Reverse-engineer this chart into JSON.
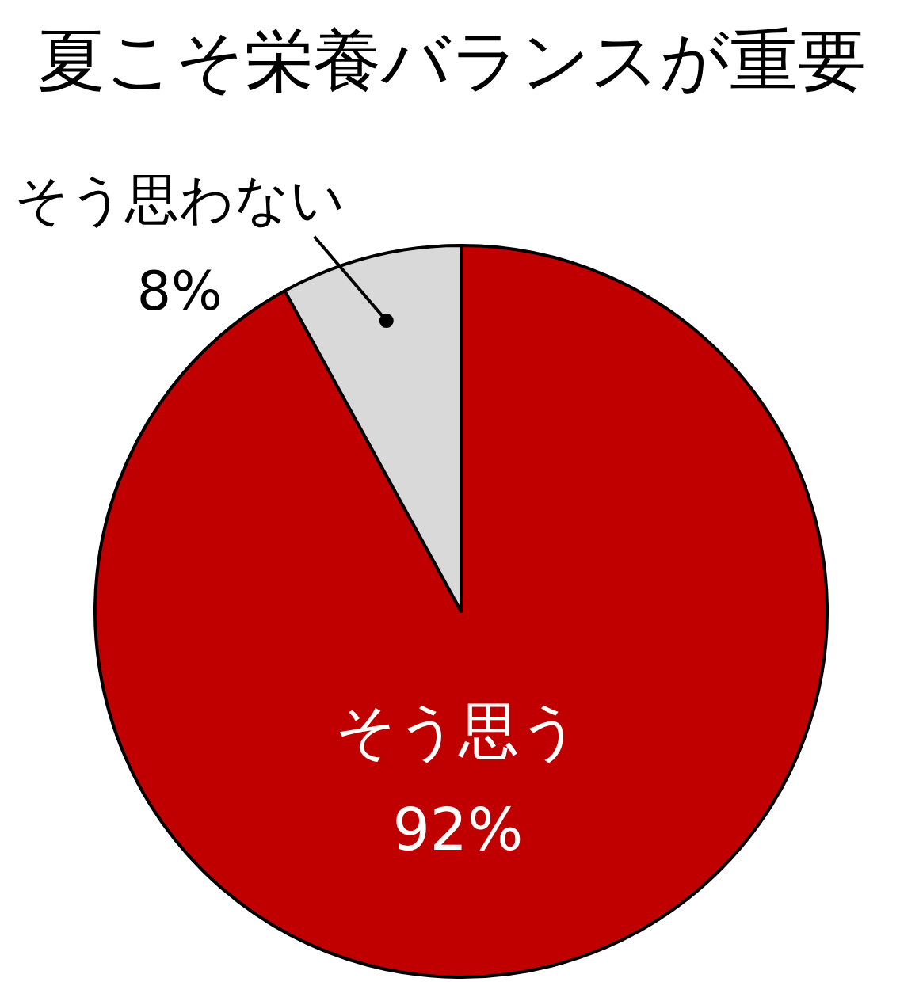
{
  "chart_data": {
    "type": "pie",
    "title": "夏こそ栄養バランスが重要",
    "categories": [
      "そう思う",
      "そう思わない"
    ],
    "values": [
      92,
      8
    ],
    "colors": [
      "#c00000",
      "#d9d9d9"
    ],
    "value_labels": [
      "92%",
      "8%"
    ],
    "legend": false
  }
}
